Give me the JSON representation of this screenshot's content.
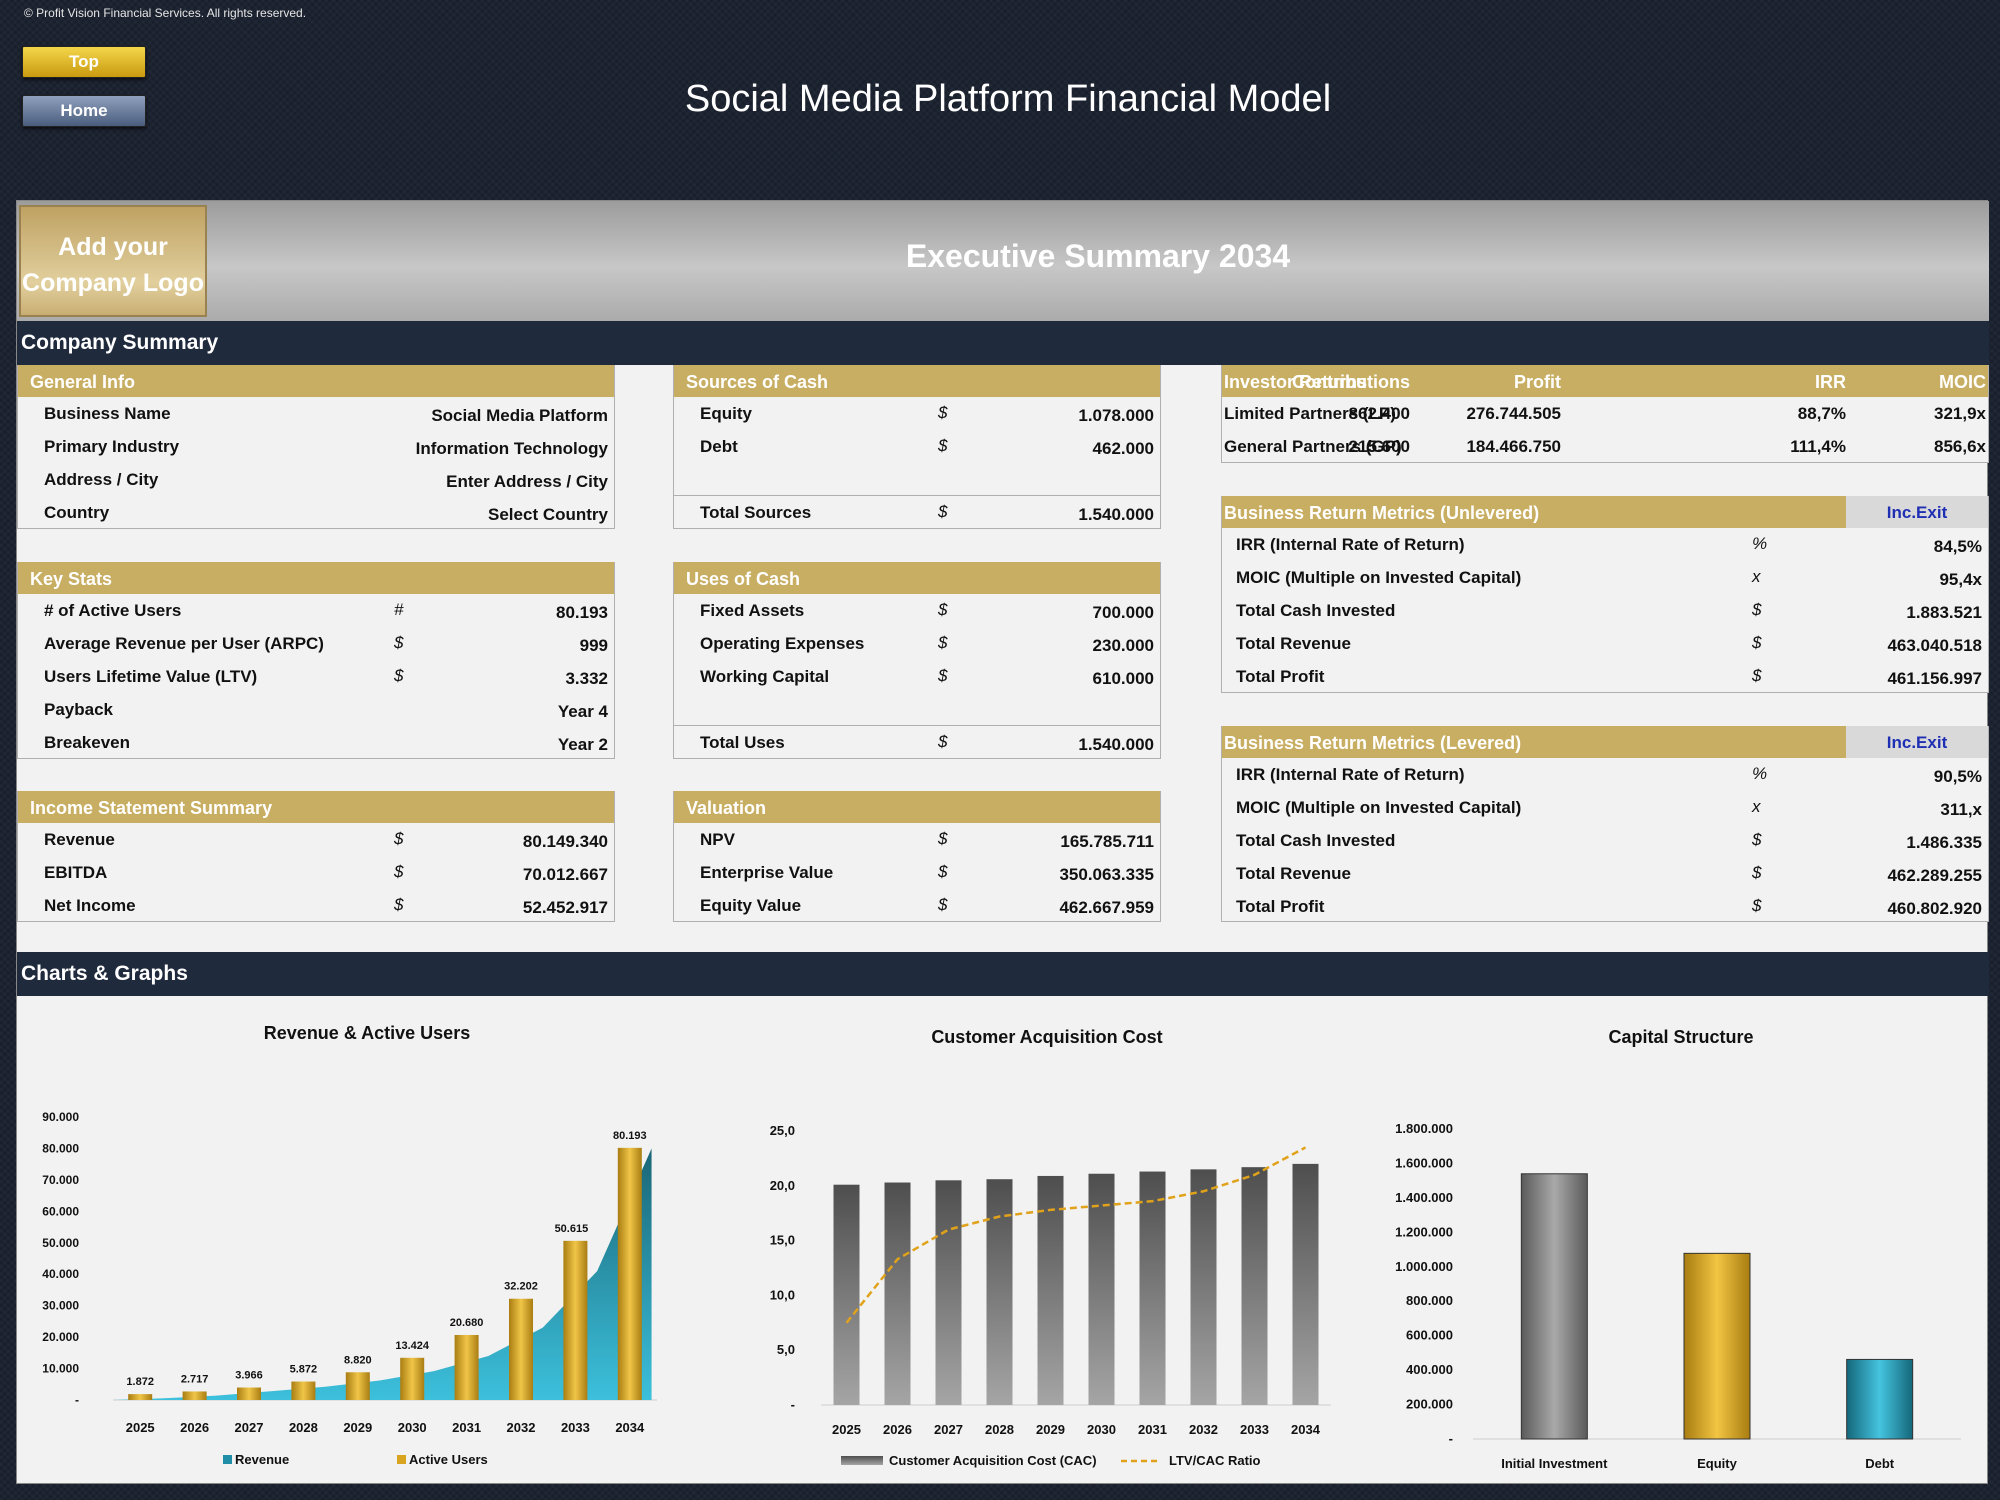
{
  "copyright": "© Profit Vision Financial Services. All rights reserved.",
  "nav": {
    "top": "Top",
    "home": "Home"
  },
  "title": "Social Media Platform Financial Model",
  "logo": {
    "line1": "Add your",
    "line2": "Company Logo"
  },
  "hero_title": "Executive Summary 2034",
  "sections": {
    "company_summary": "Company Summary",
    "charts": "Charts & Graphs"
  },
  "general_info": {
    "title": "General Info",
    "rows": [
      {
        "label": "Business Name",
        "value": "Social Media Platform"
      },
      {
        "label": "Primary Industry",
        "value": "Information Technology"
      },
      {
        "label": "Address / City",
        "value": "Enter Address / City"
      },
      {
        "label": "Country",
        "value": "Select Country"
      }
    ]
  },
  "key_stats": {
    "title": "Key Stats",
    "rows": [
      {
        "label": "# of Active Users",
        "unit": "#",
        "value": "80.193"
      },
      {
        "label": "Average Revenue per User (ARPC)",
        "unit": "$",
        "value": "999"
      },
      {
        "label": "Users Lifetime Value (LTV)",
        "unit": "$",
        "value": "3.332"
      },
      {
        "label": "Payback",
        "unit": "",
        "value": "Year 4"
      },
      {
        "label": "Breakeven",
        "unit": "",
        "value": "Year 2"
      }
    ]
  },
  "income_statement": {
    "title": "Income Statement Summary",
    "rows": [
      {
        "label": "Revenue",
        "unit": "$",
        "value": "80.149.340"
      },
      {
        "label": "EBITDA",
        "unit": "$",
        "value": "70.012.667"
      },
      {
        "label": "Net Income",
        "unit": "$",
        "value": "52.452.917"
      }
    ]
  },
  "sources": {
    "title": "Sources of Cash",
    "rows": [
      {
        "label": "Equity",
        "unit": "$",
        "value": "1.078.000"
      },
      {
        "label": "Debt",
        "unit": "$",
        "value": "462.000"
      }
    ],
    "total": {
      "label": "Total Sources",
      "unit": "$",
      "value": "1.540.000"
    }
  },
  "uses": {
    "title": "Uses of Cash",
    "rows": [
      {
        "label": "Fixed Assets",
        "unit": "$",
        "value": "700.000"
      },
      {
        "label": "Operating Expenses",
        "unit": "$",
        "value": "230.000"
      },
      {
        "label": "Working Capital",
        "unit": "$",
        "value": "610.000"
      }
    ],
    "total": {
      "label": "Total Uses",
      "unit": "$",
      "value": "1.540.000"
    }
  },
  "valuation": {
    "title": "Valuation",
    "rows": [
      {
        "label": "NPV",
        "unit": "$",
        "value": "165.785.711"
      },
      {
        "label": "Enterprise Value",
        "unit": "$",
        "value": "350.063.335"
      },
      {
        "label": "Equity Value",
        "unit": "$",
        "value": "462.667.959"
      }
    ]
  },
  "investor_returns": {
    "headers": [
      "Investor Returns",
      "Contributions",
      "Profit",
      "IRR",
      "MOIC"
    ],
    "rows": [
      {
        "label": "Limited Partners (LP)",
        "contributions": "862.400",
        "profit": "276.744.505",
        "irr": "88,7%",
        "moic": "321,9x"
      },
      {
        "label": "General Partners (GP)",
        "contributions": "215.600",
        "profit": "184.466.750",
        "irr": "111,4%",
        "moic": "856,6x"
      }
    ]
  },
  "unlevered": {
    "title": "Business Return Metrics (Unlevered)",
    "badge": "Inc.Exit",
    "rows": [
      {
        "label": "IRR (Internal Rate of Return)",
        "unit": "%",
        "value": "84,5%"
      },
      {
        "label": "MOIC (Multiple on Invested Capital)",
        "unit": "x",
        "value": "95,4x"
      },
      {
        "label": "Total Cash Invested",
        "unit": "$",
        "value": "1.883.521"
      },
      {
        "label": "Total Revenue",
        "unit": "$",
        "value": "463.040.518"
      },
      {
        "label": "Total Profit",
        "unit": "$",
        "value": "461.156.997"
      }
    ]
  },
  "levered": {
    "title": "Business Return Metrics (Levered)",
    "badge": "Inc.Exit",
    "rows": [
      {
        "label": "IRR (Internal Rate of Return)",
        "unit": "%",
        "value": "90,5%"
      },
      {
        "label": "MOIC (Multiple on Invested Capital)",
        "unit": "x",
        "value": "311,x"
      },
      {
        "label": "Total Cash Invested",
        "unit": "$",
        "value": "1.486.335"
      },
      {
        "label": "Total Revenue",
        "unit": "$",
        "value": "462.289.255"
      },
      {
        "label": "Total Profit",
        "unit": "$",
        "value": "460.802.920"
      }
    ]
  },
  "colors": {
    "gold": "#c8ae62",
    "navy": "#1f2a3d",
    "teal": "#1f8ea6",
    "bar_gold": "#d9a521",
    "bar_grey": "#6b6b6b",
    "line_gold": "#e0a21a"
  },
  "chart_data": [
    {
      "type": "bar",
      "title": "Revenue & Active Users",
      "categories": [
        "2025",
        "2026",
        "2027",
        "2028",
        "2029",
        "2030",
        "2031",
        "2032",
        "2033",
        "2034"
      ],
      "y_ticks": [
        "90.000",
        "80.000",
        "70.000",
        "60.000",
        "50.000",
        "40.000",
        "30.000",
        "20.000",
        "10.000",
        "-"
      ],
      "ylim": [
        0,
        90000
      ],
      "series": [
        {
          "name": "Revenue",
          "type": "area",
          "values": [
            500,
            1400,
            2800,
            4200,
            6200,
            9200,
            14000,
            23000,
            41000,
            80000
          ]
        },
        {
          "name": "Active Users",
          "type": "bar",
          "values": [
            1872,
            2717,
            3966,
            5872,
            8820,
            13424,
            20680,
            32202,
            50615,
            80193
          ],
          "labels": [
            "1.872",
            "2.717",
            "3.966",
            "5.872",
            "8.820",
            "13.424",
            "20.680",
            "32.202",
            "50.615",
            "80.193"
          ]
        }
      ],
      "legend": "bottom"
    },
    {
      "type": "bar",
      "title": "Customer Acquisition Cost",
      "categories": [
        "2025",
        "2026",
        "2027",
        "2028",
        "2029",
        "2030",
        "2031",
        "2032",
        "2033",
        "2034"
      ],
      "y_ticks": [
        "25,0",
        "20,0",
        "15,0",
        "10,0",
        "5,0",
        "-"
      ],
      "ylim": [
        0,
        25
      ],
      "series": [
        {
          "name": "Customer Acquisition Cost (CAC)",
          "type": "bar",
          "values": [
            20.1,
            20.3,
            20.5,
            20.6,
            20.9,
            21.1,
            21.3,
            21.5,
            21.7,
            22.0
          ]
        },
        {
          "name": "LTV/CAC Ratio",
          "type": "line",
          "values": [
            7.5,
            13.3,
            16.0,
            17.2,
            17.8,
            18.2,
            18.6,
            19.5,
            21.0,
            23.5
          ]
        }
      ],
      "legend": "bottom"
    },
    {
      "type": "bar",
      "title": "Capital Structure",
      "categories": [
        "Initial Investment",
        "Equity",
        "Debt"
      ],
      "y_ticks": [
        "1.800.000",
        "1.600.000",
        "1.400.000",
        "1.200.000",
        "1.000.000",
        "800.000",
        "600.000",
        "400.000",
        "200.000",
        "-"
      ],
      "ylim": [
        0,
        1800000
      ],
      "values": [
        1540000,
        1078000,
        462000
      ]
    }
  ]
}
